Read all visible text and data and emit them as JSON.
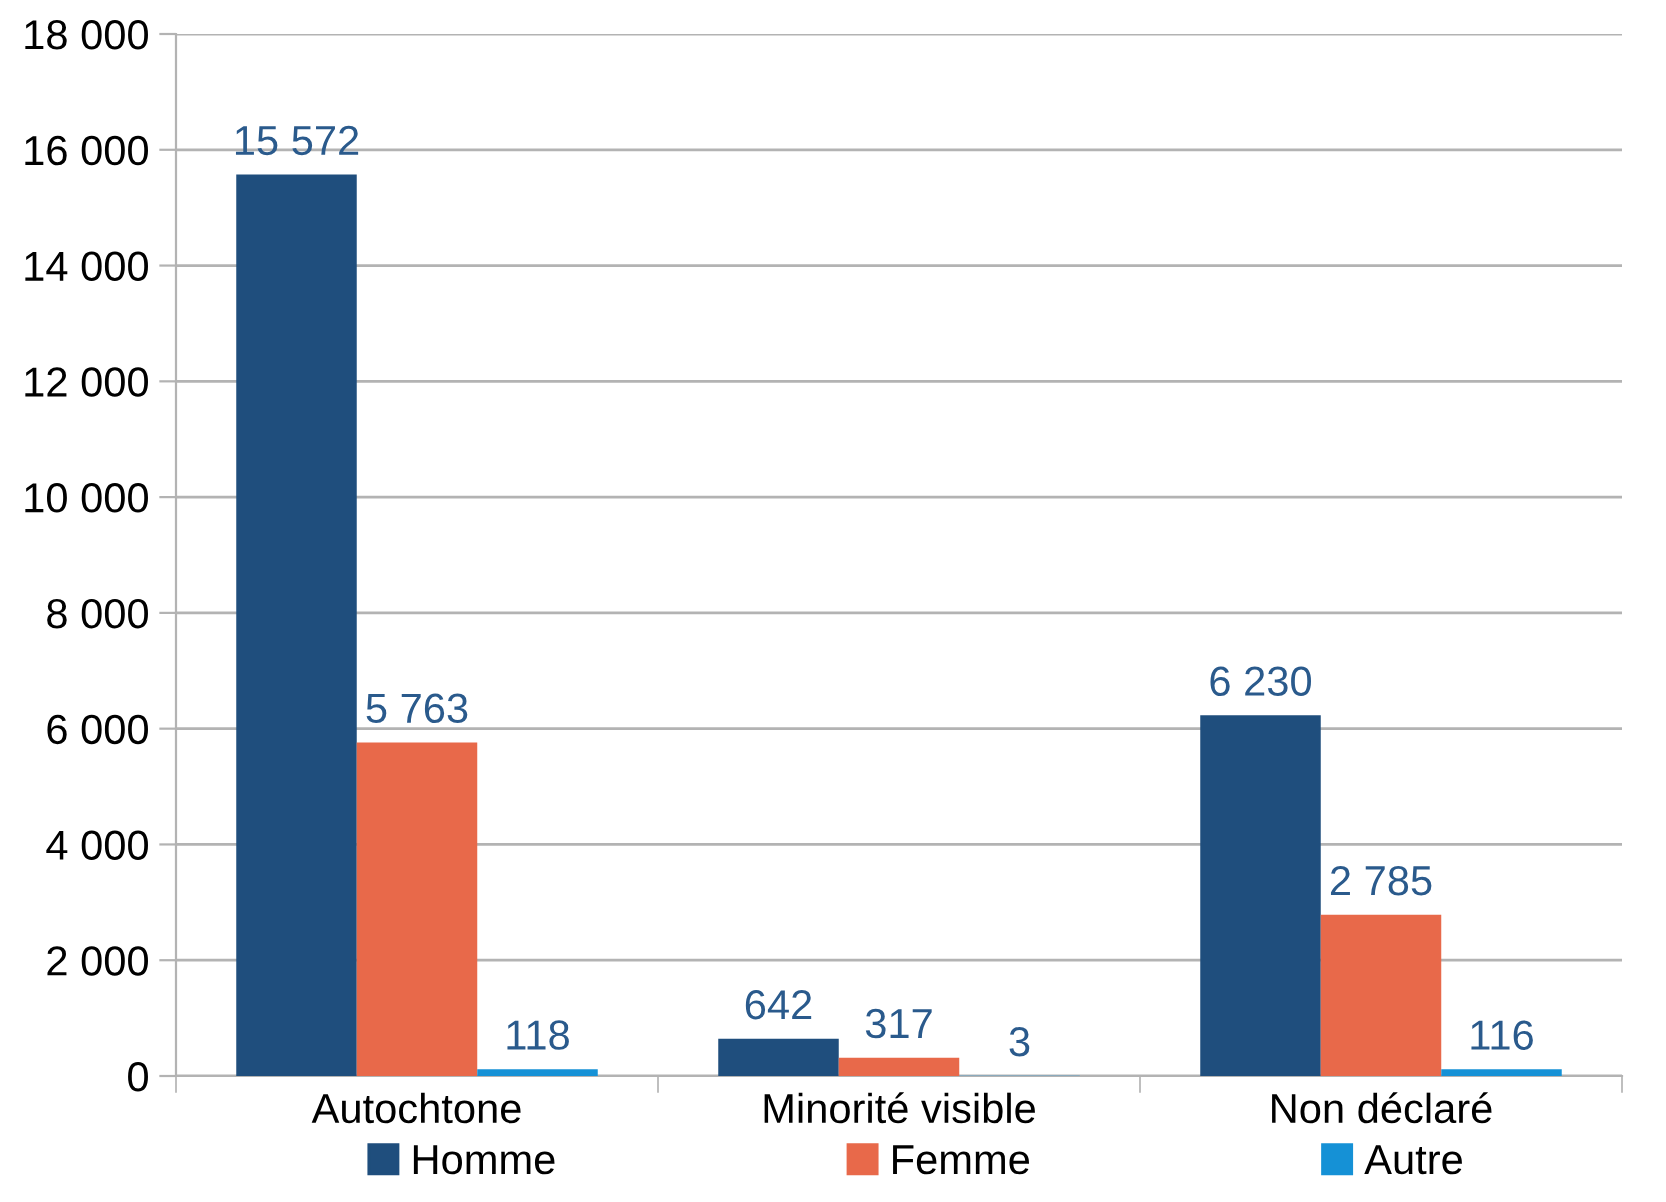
{
  "chart_data": {
    "type": "bar",
    "categories": [
      "Autochtone",
      "Minorité visible",
      "Non déclaré"
    ],
    "series": [
      {
        "name": "Homme",
        "color": "#1f4e7d",
        "values": [
          15572,
          642,
          6230
        ],
        "value_labels": [
          "15 572",
          "642",
          "6 230"
        ]
      },
      {
        "name": "Femme",
        "color": "#e8694a",
        "values": [
          5763,
          317,
          2785
        ],
        "value_labels": [
          "5 763",
          "317",
          "2 785"
        ]
      },
      {
        "name": "Autre",
        "color": "#1591d6",
        "values": [
          118,
          3,
          116
        ],
        "value_labels": [
          "118",
          "3",
          "116"
        ]
      }
    ],
    "ylim": [
      0,
      18000
    ],
    "yticks": [
      0,
      {
        "value": 2000,
        "label": "2 000"
      },
      {
        "value": 4000,
        "label": "4 000"
      },
      {
        "value": 6000,
        "label": "6 000"
      },
      {
        "value": 8000,
        "label": "8 000"
      },
      {
        "value": 10000,
        "label": "10 000"
      },
      {
        "value": 12000,
        "label": "12 000"
      },
      {
        "value": 14000,
        "label": "14 000"
      },
      {
        "value": 16000,
        "label": "16 000"
      },
      {
        "value": 18000,
        "label": "18 000"
      }
    ],
    "grid": "y",
    "legend": "bottom"
  }
}
